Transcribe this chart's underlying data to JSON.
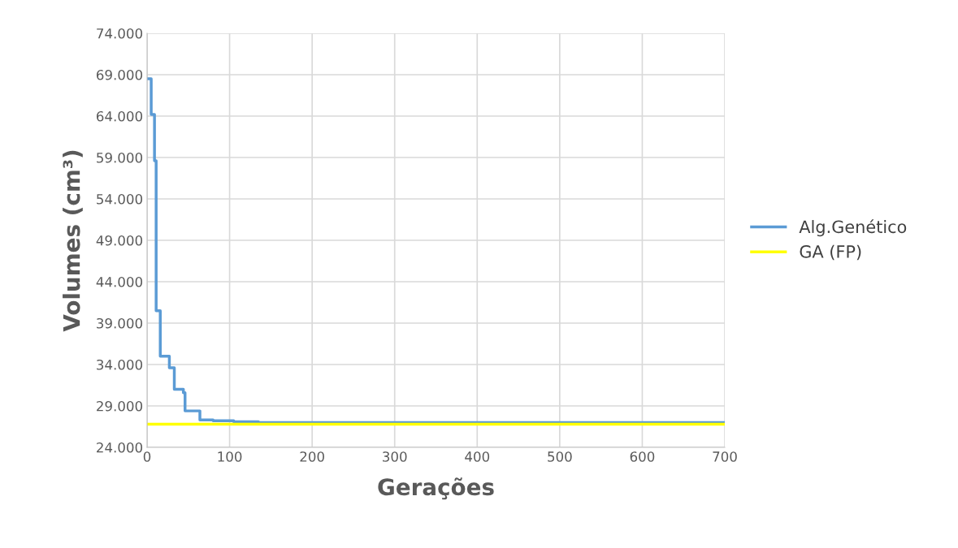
{
  "chart_data": {
    "type": "line",
    "xlabel": "Gerações",
    "ylabel": "Volumes (cm³)",
    "series": [
      {
        "name": "Alg.Genético",
        "color": "#5b9bd5",
        "type": "step",
        "x": [
          0,
          5,
          9,
          11,
          16,
          27,
          33,
          44,
          46,
          64,
          80,
          105,
          135,
          700
        ],
        "values": [
          68500,
          64200,
          58600,
          40500,
          35000,
          33600,
          31000,
          30600,
          28400,
          27300,
          27200,
          27100,
          27000,
          27000
        ]
      },
      {
        "name": "GA (FP)",
        "color": "#ffff00",
        "x": [
          0,
          700
        ],
        "values": [
          26800,
          26800
        ]
      }
    ],
    "xlim": [
      0,
      700
    ],
    "xticks": [
      0,
      100,
      200,
      300,
      400,
      500,
      600,
      700
    ],
    "ylim": [
      24000,
      74000
    ],
    "yticks": [
      {
        "value": 24000,
        "label": "24.000"
      },
      {
        "value": 29000,
        "label": "29.000"
      },
      {
        "value": 34000,
        "label": "34.000"
      },
      {
        "value": 39000,
        "label": "39.000"
      },
      {
        "value": 44000,
        "label": "44.000"
      },
      {
        "value": 49000,
        "label": "49.000"
      },
      {
        "value": 54000,
        "label": "54.000"
      },
      {
        "value": 59000,
        "label": "59.000"
      },
      {
        "value": 64000,
        "label": "64.000"
      },
      {
        "value": 69000,
        "label": "69.000"
      },
      {
        "value": 74000,
        "label": "74.000"
      }
    ],
    "grid": true,
    "legend": "right",
    "marker": "none",
    "line_style": "solid"
  }
}
